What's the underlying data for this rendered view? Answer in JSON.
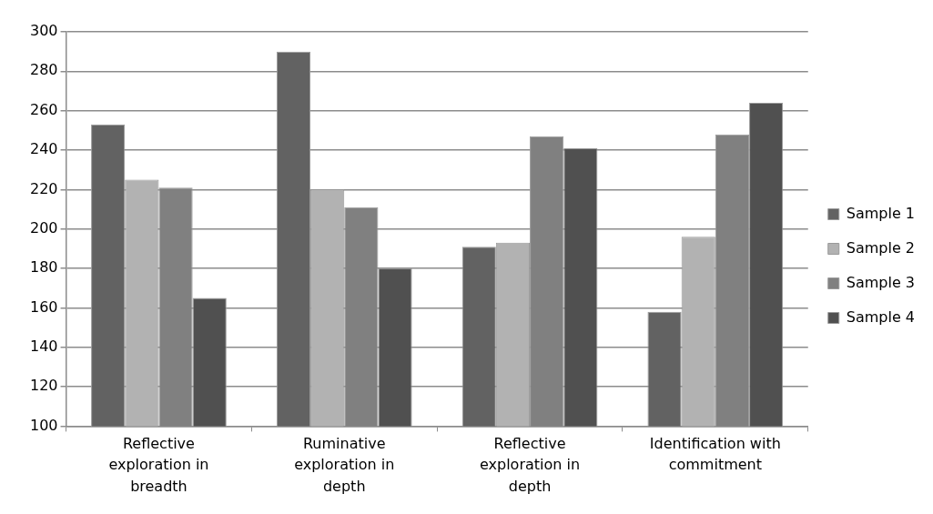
{
  "chart_data": {
    "type": "bar",
    "categories": [
      "Reflective exploration in breadth",
      "Ruminative exploration in depth",
      "Reflective exploration in depth",
      "Identification with commitment"
    ],
    "series": [
      {
        "name": "Sample 1",
        "color": "#626262",
        "values": [
          253,
          290,
          191,
          158
        ]
      },
      {
        "name": "Sample 2",
        "color": "#b2b2b2",
        "values": [
          225,
          220,
          193,
          196
        ]
      },
      {
        "name": "Sample 3",
        "color": "#808080",
        "values": [
          221,
          211,
          247,
          248
        ]
      },
      {
        "name": "Sample 4",
        "color": "#505050",
        "values": [
          165,
          180,
          241,
          264
        ]
      }
    ],
    "ylim": [
      100,
      300
    ],
    "yticks": [
      100,
      120,
      140,
      160,
      180,
      200,
      220,
      240,
      260,
      280,
      300
    ],
    "grid": "y",
    "legend": "right"
  }
}
